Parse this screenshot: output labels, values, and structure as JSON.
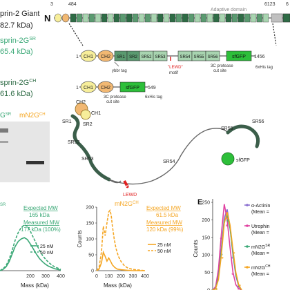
{
  "labels": {
    "giant_title": "prin-2 Giant",
    "giant_mass": "82.7 kDa)",
    "sr_title": "sprin-2G",
    "sr_sup": "SR",
    "sr_mass": "65.4 kDa)",
    "ch_title": "sprin-2G",
    "ch_sup": "CH",
    "ch_mass": "61.6 kDa)",
    "gel_sr": "G",
    "gel_sr_sup": "SR",
    "gel_ch": "mN2G",
    "gel_ch_sup": "CH",
    "n_term": "N",
    "tick_3": "3",
    "tick_484": "484",
    "tick_6123": "6123",
    "tick_6": "6",
    "adaptive_domain": "Adaptive domain",
    "sr_end": "1456",
    "ch_end": "549",
    "start_1": "1",
    "ybbr": "ybbr tag",
    "lewd_motif_line1": "\"LEWD\"",
    "lewd_motif_line2": "motif",
    "protease": "3C protease",
    "cut_site": "cut site",
    "his_tag": "6xHis tag"
  },
  "sr_construct": [
    "CH1",
    "CH2",
    "SR1",
    "SR2",
    "SR52",
    "SR53",
    "SR54",
    "SR55",
    "SR56",
    "sfGFP"
  ],
  "ch_construct": [
    "CH1",
    "CH2",
    "sfGFP"
  ],
  "structure_labels": {
    "ch2": "CH2",
    "ch1": "CH1",
    "sr1": "SR1",
    "sr2": "SR2",
    "sr3": "SR3",
    "sr52": "SR52",
    "sr53": "SR53",
    "sr54": "SR54",
    "sr55": "SR55",
    "sr56": "SR56",
    "sfgfp": "sfGFP",
    "lewd": "LEWD"
  },
  "colors": {
    "dark_green": "#2e6b45",
    "mid_green": "#5a9a70",
    "light_green": "#a8d4b0",
    "sfgfp": "#2dbf3a",
    "ch1": "#f7ee9a",
    "ch2": "#f2b872",
    "orange": "#f5a623",
    "teal": "#3aa876",
    "lewd_red": "#e02020",
    "pink": "#e040a0",
    "purple": "#8a6fd0"
  },
  "chart_data": [
    {
      "type": "line",
      "title": "",
      "tag": "SR",
      "xlabel": "Mass (kDa)",
      "ylabel": "",
      "xticks": [
        "200",
        "300",
        "400"
      ],
      "xlim": [
        0,
        400
      ],
      "ylim": [
        0,
        100
      ],
      "annotations": {
        "expected_label": "Expected MW",
        "expected_value": "165 kDa",
        "measured_label": "Measured MW",
        "measured_value": "177 kDa (100%)"
      },
      "legend": [
        "25 nM",
        "50 nM"
      ],
      "legend_position": "center-right",
      "series": [
        {
          "name": "25 nM",
          "style": "solid",
          "x": [
            0,
            20,
            40,
            60,
            80,
            100,
            120,
            140,
            160,
            180,
            200,
            220,
            240,
            260,
            280,
            300,
            320,
            340,
            360,
            380,
            400
          ],
          "y": [
            0,
            2,
            6,
            14,
            26,
            38,
            46,
            50,
            52,
            49,
            42,
            34,
            26,
            19,
            14,
            10,
            7,
            5,
            3,
            2,
            1
          ]
        },
        {
          "name": "50 nM",
          "style": "dashed",
          "x": [
            0,
            20,
            40,
            60,
            80,
            100,
            120,
            140,
            160,
            180,
            200,
            220,
            240,
            260,
            280,
            300,
            320,
            340,
            360,
            380,
            400
          ],
          "y": [
            0,
            3,
            8,
            18,
            32,
            48,
            60,
            68,
            72,
            70,
            62,
            52,
            42,
            32,
            24,
            18,
            13,
            9,
            6,
            4,
            2
          ]
        }
      ]
    },
    {
      "type": "line",
      "title": "mN2G",
      "title_sup": "CH",
      "xlabel": "Mass (kDa)",
      "ylabel": "Counts",
      "yticks": [
        "0",
        "50",
        "100",
        "150",
        "200"
      ],
      "xticks": [
        "0",
        "100",
        "200",
        "300",
        "400"
      ],
      "xlim": [
        0,
        400
      ],
      "ylim": [
        0,
        200
      ],
      "annotations": {
        "expected_label": "Expected MW",
        "expected_value": "61.5 kDa",
        "measured_label": "Measured MW",
        "measured_value": "120 kDa (99%)"
      },
      "legend": [
        "25 nM",
        "50 nM"
      ],
      "legend_position": "center-right",
      "series": [
        {
          "name": "25 nM",
          "style": "solid",
          "x": [
            0,
            20,
            40,
            55,
            70,
            85,
            100,
            115,
            130,
            150,
            170,
            200,
            230,
            260,
            300,
            350,
            400
          ],
          "y": [
            0,
            5,
            25,
            58,
            45,
            30,
            40,
            30,
            18,
            10,
            5,
            3,
            2,
            1,
            0,
            0,
            0
          ]
        },
        {
          "name": "50 nM",
          "style": "dashed",
          "x": [
            0,
            20,
            40,
            55,
            70,
            85,
            100,
            110,
            120,
            130,
            145,
            160,
            180,
            200,
            230,
            260,
            300,
            350,
            400
          ],
          "y": [
            0,
            10,
            60,
            140,
            110,
            150,
            185,
            190,
            175,
            140,
            100,
            70,
            45,
            30,
            15,
            8,
            4,
            2,
            0
          ]
        }
      ]
    },
    {
      "type": "line",
      "title": "",
      "panel": "E",
      "xlabel": "",
      "ylabel": "Counts",
      "yticks": [
        "0",
        "50",
        "100",
        "150",
        "200",
        "250"
      ],
      "ylim": [
        0,
        260
      ],
      "legend": [
        {
          "name": "α-Actinin",
          "detail": "(Mean ="
        },
        {
          "name": "Utrophin",
          "detail": "(Mean ="
        },
        {
          "name": "mN2G",
          "sup": "SR",
          "detail": "(Mean ="
        },
        {
          "name": "mN2G",
          "sup": "CH",
          "detail": "(Mean ="
        }
      ],
      "legend_position": "right",
      "series": [
        {
          "name": "α-Actinin",
          "x": [
            0,
            1,
            2,
            3,
            4,
            5,
            6,
            7,
            8,
            9,
            10
          ],
          "y": [
            0,
            5,
            40,
            120,
            205,
            230,
            180,
            100,
            40,
            10,
            0
          ]
        },
        {
          "name": "Utrophin",
          "x": [
            0,
            1,
            2,
            3,
            4,
            5,
            6,
            7,
            8,
            9,
            10
          ],
          "y": [
            0,
            8,
            60,
            160,
            245,
            200,
            120,
            50,
            15,
            4,
            0
          ]
        },
        {
          "name": "mN2G SR",
          "x": [
            0,
            1,
            2,
            3,
            4,
            5,
            6,
            7,
            8,
            9,
            10
          ],
          "y": [
            0,
            4,
            35,
            110,
            195,
            215,
            175,
            105,
            45,
            12,
            0
          ]
        },
        {
          "name": "mN2G CH",
          "x": [
            0,
            1,
            2,
            3,
            4,
            5,
            6,
            7,
            8,
            9,
            10
          ],
          "y": [
            0,
            3,
            30,
            100,
            190,
            222,
            185,
            115,
            50,
            14,
            0
          ]
        }
      ]
    }
  ]
}
